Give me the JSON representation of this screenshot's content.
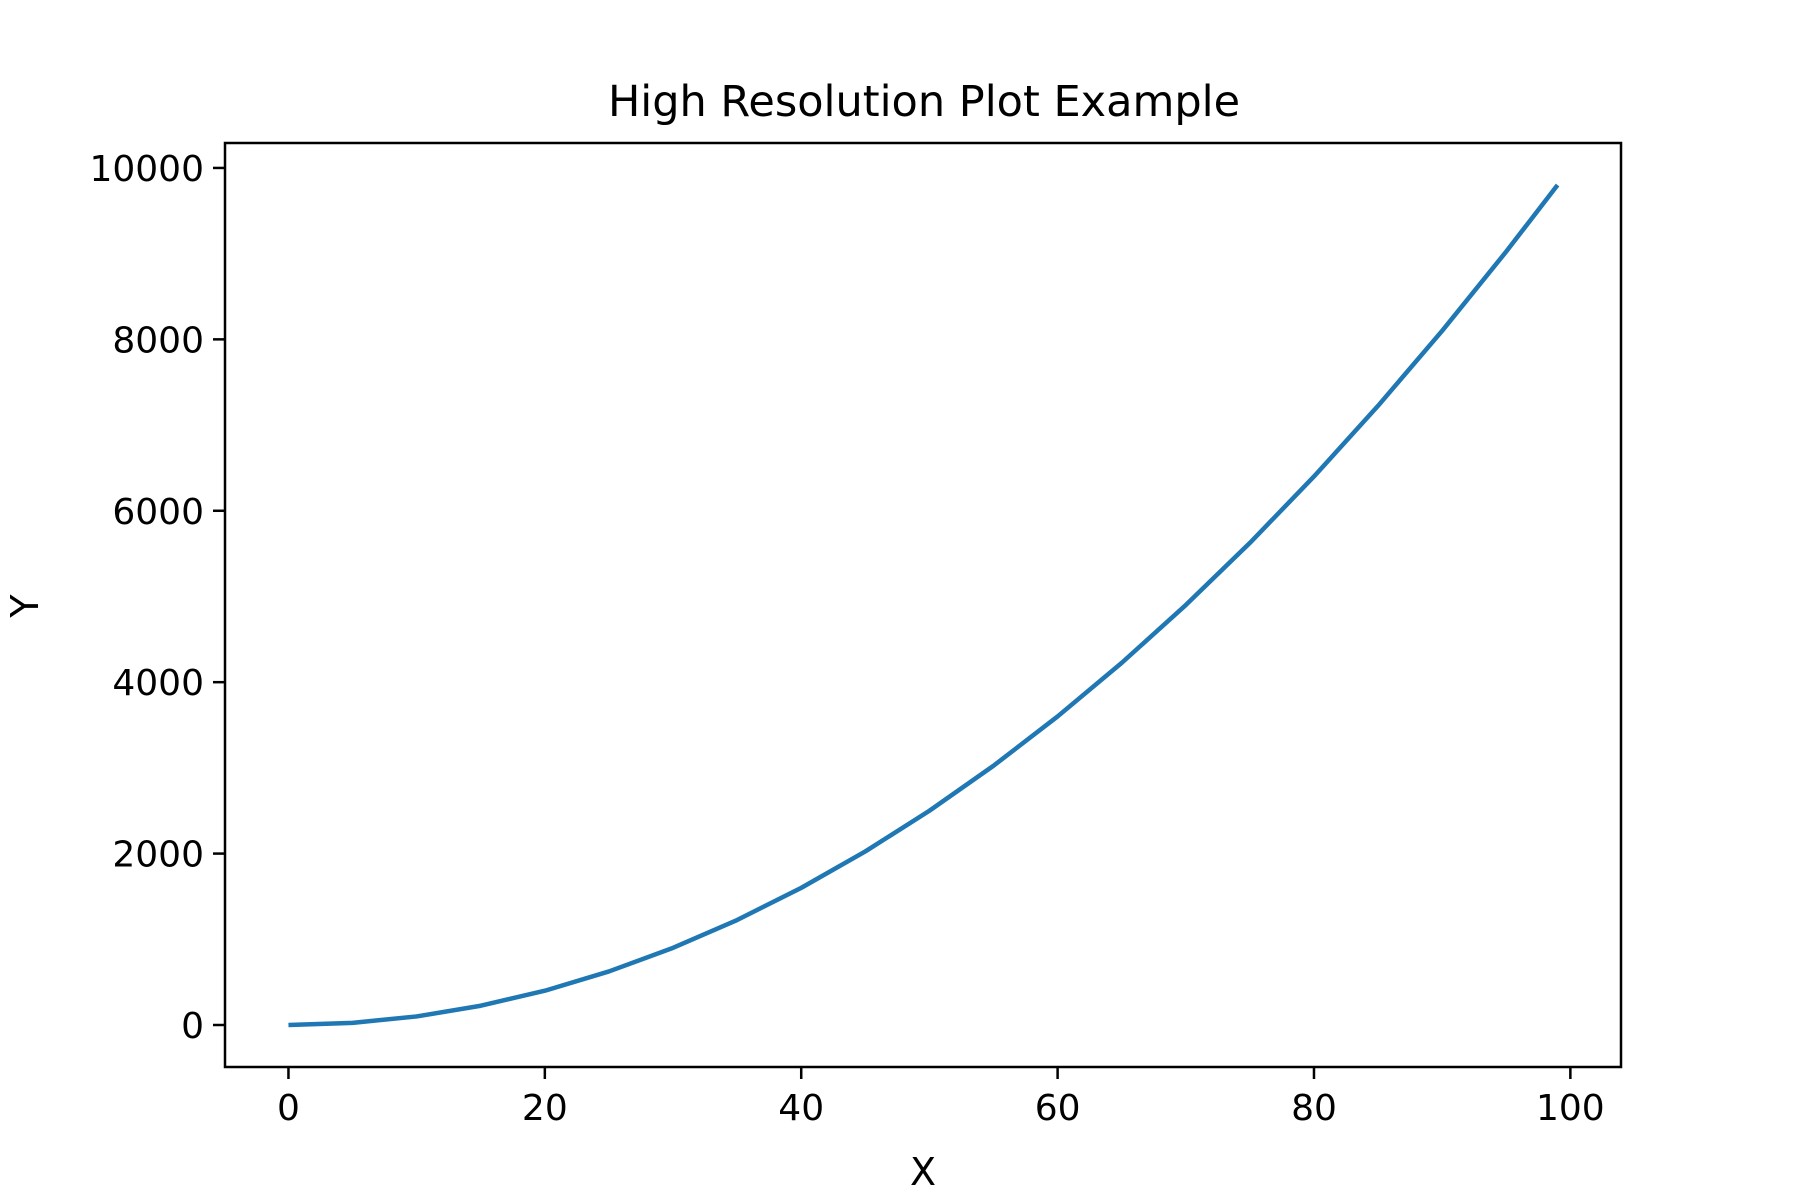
{
  "chart_data": {
    "type": "line",
    "title": "High Resolution Plot Example",
    "xlabel": "X",
    "ylabel": "Y",
    "xlim": [
      -4.95,
      103.95
    ],
    "ylim": [
      -490.05,
      10291.05
    ],
    "xticks": [
      0,
      20,
      40,
      60,
      80,
      100
    ],
    "yticks": [
      0,
      2000,
      4000,
      6000,
      8000,
      10000
    ],
    "grid": false,
    "legend": "none",
    "series": [
      {
        "color": "#1f77b4",
        "x": [
          0,
          5,
          10,
          15,
          20,
          25,
          30,
          35,
          40,
          45,
          50,
          55,
          60,
          65,
          70,
          75,
          80,
          85,
          90,
          95,
          99
        ],
        "y": [
          0,
          25,
          100,
          225,
          400,
          625,
          900,
          1225,
          1600,
          2025,
          2500,
          3025,
          3600,
          4225,
          4900,
          5625,
          6400,
          7225,
          8100,
          9025,
          9801
        ]
      }
    ]
  }
}
